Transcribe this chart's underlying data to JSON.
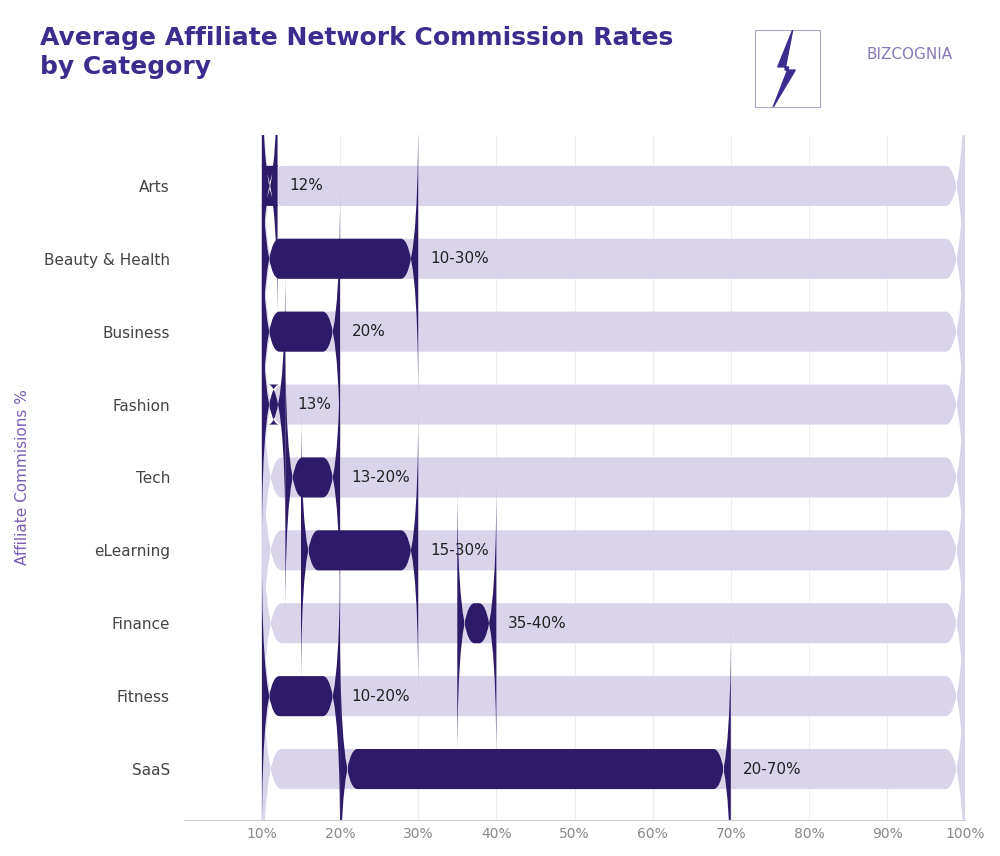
{
  "title": "Average Affiliate Network Commission Rates\nby Category",
  "title_color": "#3d2b8e",
  "ylabel": "Affiliate Commisions %",
  "ylabel_color": "#7b5cb8",
  "background_color": "#ffffff",
  "categories": [
    "Arts",
    "Beauty & Health",
    "Business",
    "Fashion",
    "Tech",
    "eLearning",
    "Finance",
    "Fitness",
    "SaaS"
  ],
  "bar_start": [
    10,
    10,
    10,
    10,
    13,
    15,
    35,
    10,
    20
  ],
  "bar_end": [
    12,
    30,
    20,
    13,
    20,
    30,
    40,
    20,
    70
  ],
  "labels": [
    "12%",
    "10-30%",
    "20%",
    "13%",
    "13-20%",
    "15-30%",
    "35-40%",
    "10-20%",
    "20-70%"
  ],
  "bg_bar_color": "#d9d4ea",
  "fg_bar_color": "#2d1b69",
  "xlim": [
    0,
    100
  ],
  "xticks": [
    10,
    20,
    30,
    40,
    50,
    60,
    70,
    80,
    90,
    100
  ],
  "xtick_labels": [
    "10%",
    "20%",
    "30%",
    "40%",
    "50%",
    "60%",
    "70%",
    "80%",
    "90%",
    "100%"
  ],
  "bar_height": 0.55,
  "fig_width": 10.0,
  "fig_height": 8.56
}
